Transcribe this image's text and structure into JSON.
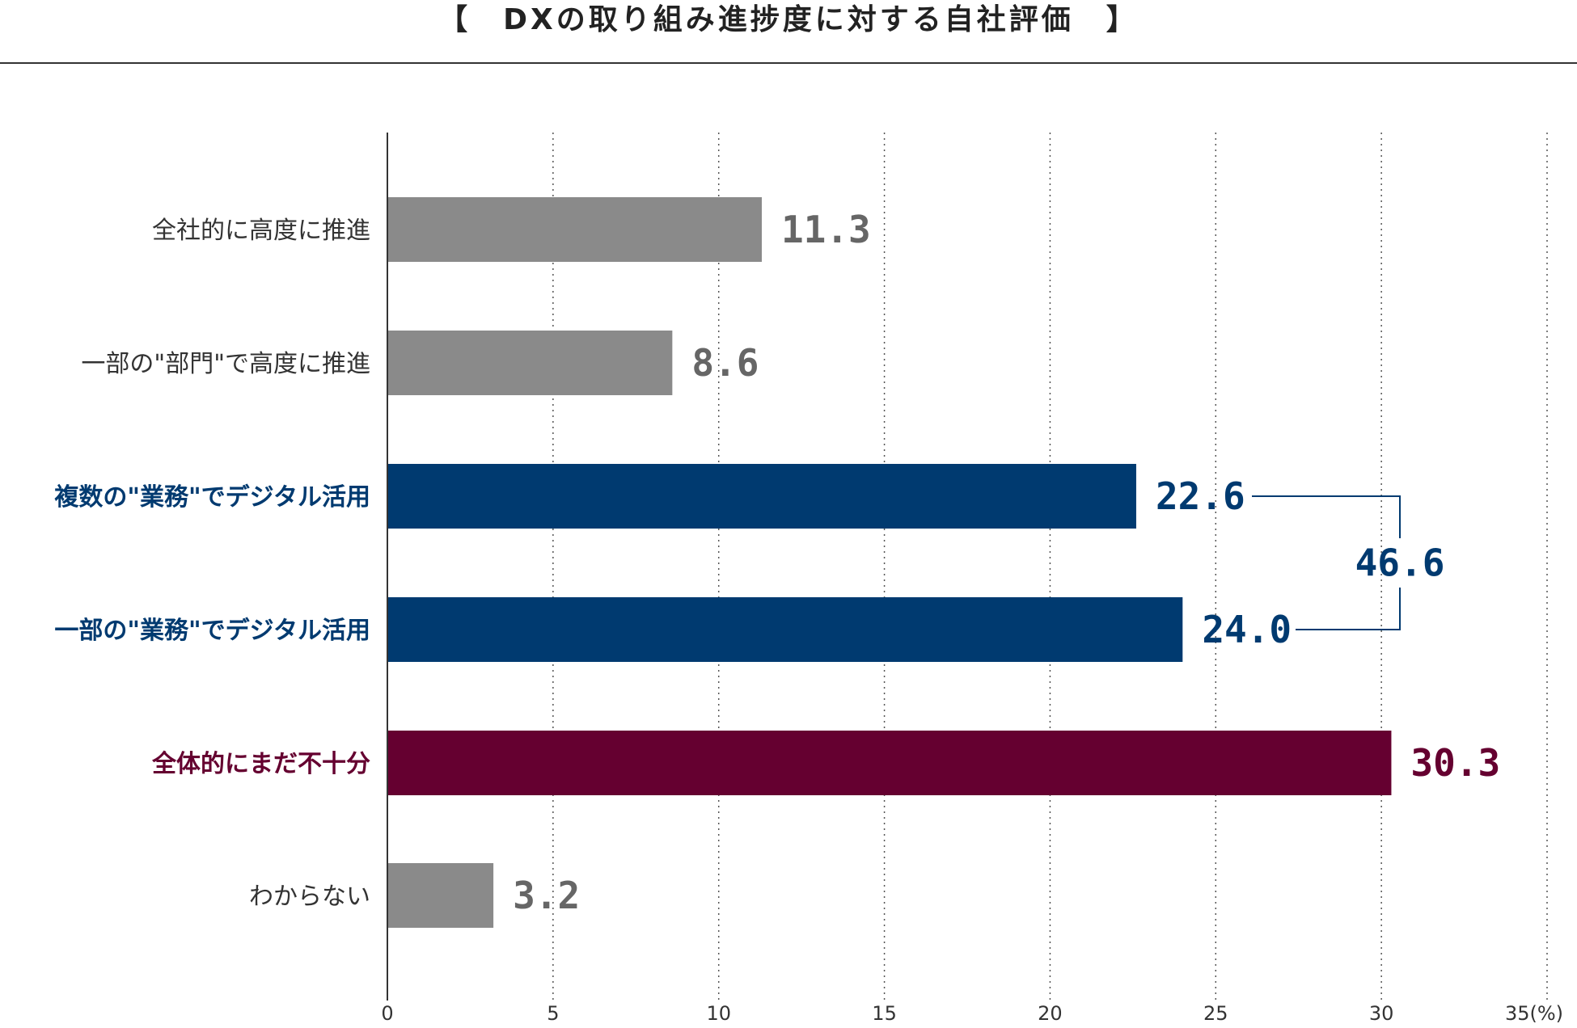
{
  "chart_data": {
    "type": "bar",
    "orientation": "horizontal",
    "title": "【　DXの取り組み進捗度に対する自社評価　】",
    "categories": [
      "全社的に高度に推進",
      "一部の\"部門\"で高度に推進",
      "複数の\"業務\"でデジタル活用",
      "一部の\"業務\"でデジタル活用",
      "全体的にまだ不十分",
      "わからない"
    ],
    "values": [
      11.3,
      8.6,
      22.6,
      24.0,
      30.3,
      3.2
    ],
    "value_labels": [
      "11.3",
      "8.6",
      "22.6",
      "24.0",
      "30.3",
      "3.2"
    ],
    "bar_colors": [
      "#8a8a8a",
      "#8a8a8a",
      "#003a70",
      "#003a70",
      "#650030",
      "#8a8a8a"
    ],
    "label_colors": [
      "#333333",
      "#333333",
      "#003a70",
      "#003a70",
      "#650030",
      "#333333"
    ],
    "value_colors": [
      "#666666",
      "#666666",
      "#003a70",
      "#003a70",
      "#650030",
      "#666666"
    ],
    "xlim": [
      0,
      35
    ],
    "x_ticks": [
      0,
      5,
      10,
      15,
      20,
      25,
      30,
      35
    ],
    "x_tick_labels": [
      "0",
      "5",
      "10",
      "15",
      "20",
      "25",
      "30",
      "35(%)"
    ],
    "grid": "vertical-dotted",
    "bracket": {
      "from_category": 2,
      "to_category": 3,
      "label": "46.6",
      "value": 46.6,
      "color": "#003a70"
    }
  }
}
